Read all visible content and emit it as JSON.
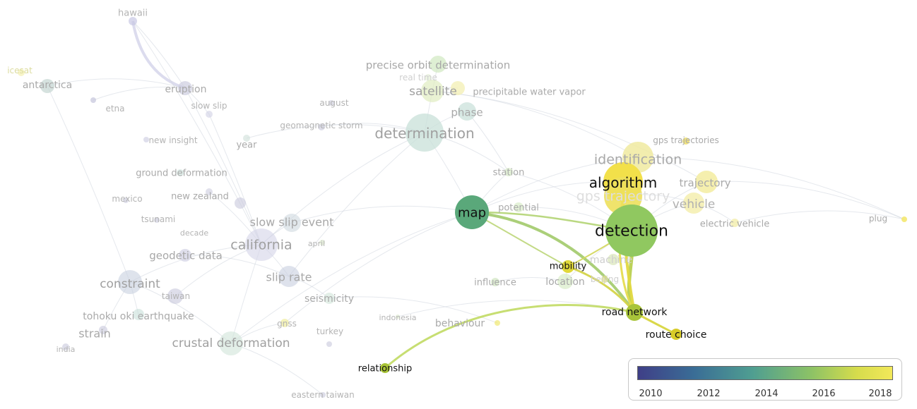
{
  "labels": [
    {
      "id": "hawaii",
      "text": "hawaii"
    },
    {
      "id": "icesat",
      "text": "icesat"
    },
    {
      "id": "antarctica",
      "text": "antarctica"
    },
    {
      "id": "eruption",
      "text": "eruption"
    },
    {
      "id": "etna",
      "text": "etna"
    },
    {
      "id": "slow_slip",
      "text": "slow slip"
    },
    {
      "id": "august",
      "text": "august"
    },
    {
      "id": "geomagnetic_storm",
      "text": "geomagnetic storm"
    },
    {
      "id": "new_insight",
      "text": "new insight"
    },
    {
      "id": "year",
      "text": "year"
    },
    {
      "id": "ground_deformation",
      "text": "ground deformation"
    },
    {
      "id": "mexico",
      "text": "mexico"
    },
    {
      "id": "new_zealand",
      "text": "new zealand"
    },
    {
      "id": "tsunami",
      "text": "tsunami"
    },
    {
      "id": "decade",
      "text": "decade"
    },
    {
      "id": "slow_slip_event",
      "text": "slow slip event"
    },
    {
      "id": "april",
      "text": "april"
    },
    {
      "id": "geodetic_data",
      "text": "geodetic data"
    },
    {
      "id": "california",
      "text": "california"
    },
    {
      "id": "constraint",
      "text": "constraint"
    },
    {
      "id": "taiwan",
      "text": "taiwan"
    },
    {
      "id": "slip_rate",
      "text": "slip rate"
    },
    {
      "id": "seismicity",
      "text": "seismicity"
    },
    {
      "id": "tohoku",
      "text": "tohoku oki earthquake"
    },
    {
      "id": "strain",
      "text": "strain"
    },
    {
      "id": "gnss",
      "text": "gnss"
    },
    {
      "id": "turkey",
      "text": "turkey"
    },
    {
      "id": "indonesia",
      "text": "indonesia"
    },
    {
      "id": "india",
      "text": "india"
    },
    {
      "id": "crustal_deformation",
      "text": "crustal deformation"
    },
    {
      "id": "eastern_taiwan",
      "text": "eastern taiwan"
    },
    {
      "id": "precise_orbit",
      "text": "precise orbit determination"
    },
    {
      "id": "real_time",
      "text": "real time"
    },
    {
      "id": "satellite",
      "text": "satellite"
    },
    {
      "id": "precipitable",
      "text": "precipitable water vapor"
    },
    {
      "id": "phase",
      "text": "phase"
    },
    {
      "id": "determination",
      "text": "determination"
    },
    {
      "id": "station",
      "text": "station"
    },
    {
      "id": "potential",
      "text": "potential"
    },
    {
      "id": "map",
      "text": "map"
    },
    {
      "id": "identification",
      "text": "identification"
    },
    {
      "id": "gps_trajectories",
      "text": "gps trajectories"
    },
    {
      "id": "algorithm",
      "text": "algorithm"
    },
    {
      "id": "gps_trajectory",
      "text": "gps trajectory"
    },
    {
      "id": "trajectory",
      "text": "trajectory"
    },
    {
      "id": "vehicle",
      "text": "vehicle"
    },
    {
      "id": "detection",
      "text": "detection"
    },
    {
      "id": "electric_vehicle",
      "text": "electric vehicle"
    },
    {
      "id": "plug",
      "text": "plug"
    },
    {
      "id": "machine",
      "text": "machine"
    },
    {
      "id": "mobility",
      "text": "mobility"
    },
    {
      "id": "beijing",
      "text": "beijing"
    },
    {
      "id": "location",
      "text": "location"
    },
    {
      "id": "influence",
      "text": "influence"
    },
    {
      "id": "behaviour",
      "text": "behaviour"
    },
    {
      "id": "road_network",
      "text": "road network"
    },
    {
      "id": "route_choice",
      "text": "route choice"
    },
    {
      "id": "relationship",
      "text": "relationship"
    }
  ],
  "legend": {
    "ticks": [
      "2010",
      "2012",
      "2014",
      "2016",
      "2018"
    ],
    "colors": [
      "#3f3f87",
      "#3a6d96",
      "#4f9e91",
      "#8cc266",
      "#d6dc4c",
      "#f2e85a"
    ]
  }
}
